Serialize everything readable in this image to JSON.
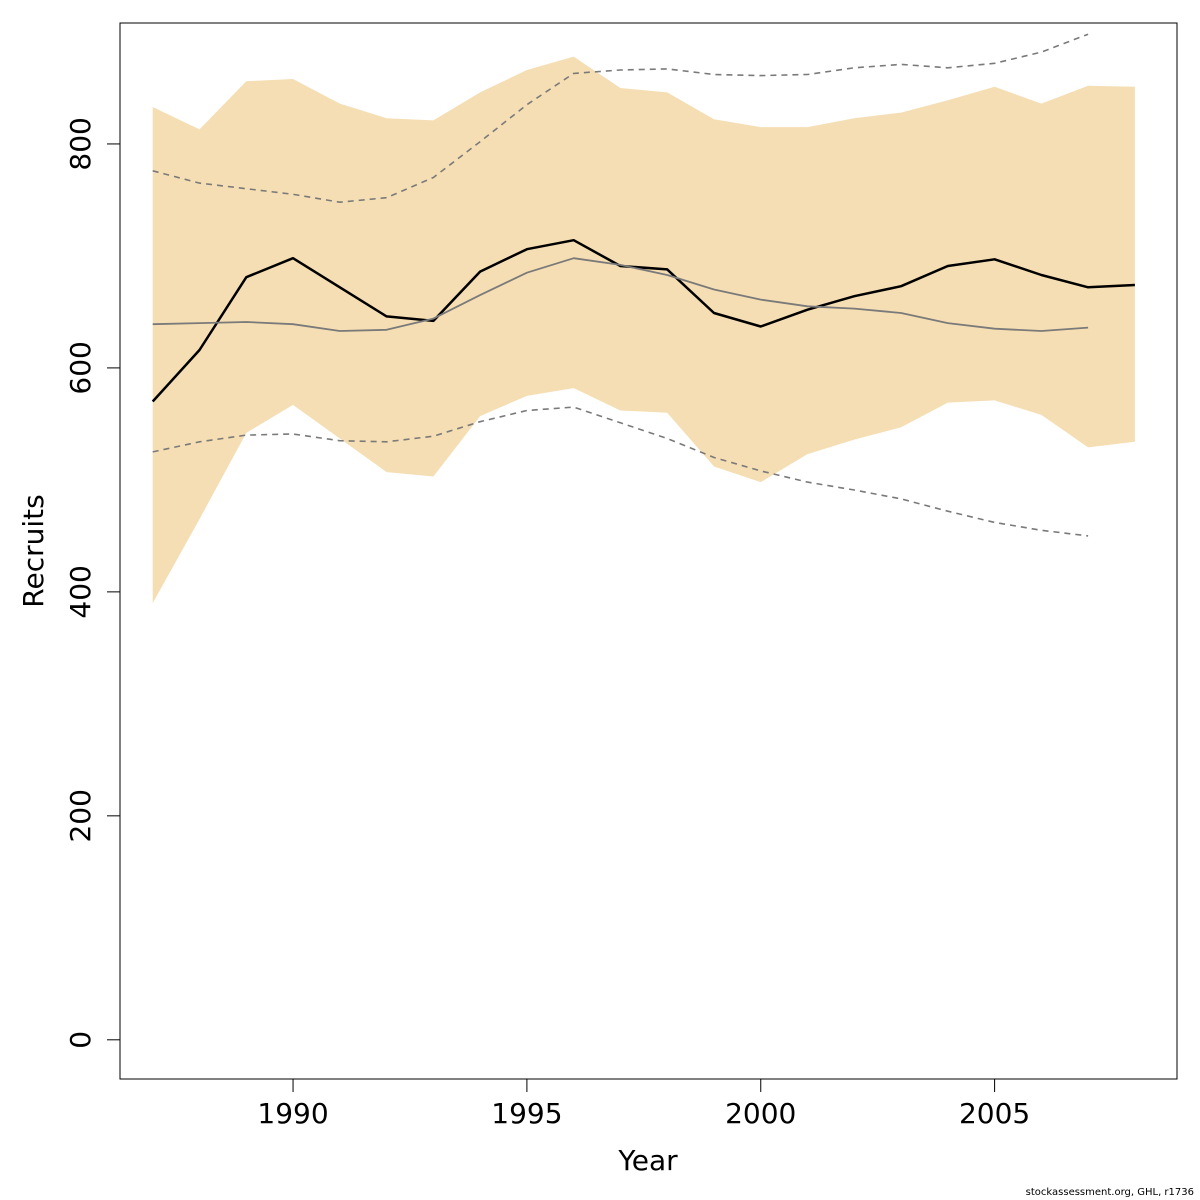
{
  "chart_data": {
    "type": "line",
    "title": "",
    "xlabel": "Year",
    "ylabel": "Recruits",
    "xlim": [
      1986.3,
      2008.9
    ],
    "ylim": [
      -35,
      908
    ],
    "x_ticks": [
      1990,
      1995,
      2000,
      2005
    ],
    "y_ticks": [
      0,
      200,
      400,
      600,
      800
    ],
    "grid": false,
    "legend": "none",
    "colors": {
      "band": "#f5deb3",
      "estimate": "#000000",
      "reference": "#7a7a7a",
      "reference_bounds": "#7a7a7a",
      "axis": "#000000"
    },
    "band": {
      "x": [
        1987,
        1988,
        1989,
        1990,
        1991,
        1992,
        1993,
        1994,
        1995,
        1996,
        1997,
        1998,
        1999,
        2000,
        2001,
        2002,
        2003,
        2004,
        2005,
        2006,
        2007,
        2008
      ],
      "lower": [
        390,
        465,
        542,
        567,
        537,
        507,
        503,
        557,
        575,
        582,
        562,
        560,
        512,
        498,
        523,
        536,
        547,
        569,
        571,
        558,
        529,
        534
      ],
      "upper": [
        833,
        813,
        856,
        858,
        836,
        823,
        821,
        846,
        866,
        878,
        850,
        846,
        822,
        815,
        815,
        823,
        828,
        839,
        851,
        836,
        852,
        851
      ]
    },
    "series": [
      {
        "style": "solid-bold",
        "x": [
          1987,
          1988,
          1989,
          1990,
          1991,
          1992,
          1993,
          1994,
          1995,
          1996,
          1997,
          1998,
          1999,
          2000,
          2001,
          2002,
          2003,
          2004,
          2005,
          2006,
          2007,
          2008
        ],
        "values": [
          570,
          616,
          681,
          698,
          672,
          646,
          642,
          686,
          706,
          714,
          691,
          688,
          649,
          637,
          652,
          664,
          673,
          691,
          697,
          683,
          672,
          674
        ]
      },
      {
        "style": "solid-thin",
        "x": [
          1987,
          1988,
          1989,
          1990,
          1991,
          1992,
          1993,
          1994,
          1995,
          1996,
          1997,
          1998,
          1999,
          2000,
          2001,
          2002,
          2003,
          2004,
          2005,
          2006,
          2007
        ],
        "values": [
          639,
          640,
          641,
          639,
          633,
          634,
          644,
          665,
          685,
          698,
          692,
          683,
          670,
          661,
          655,
          653,
          649,
          640,
          635,
          633,
          636
        ]
      },
      {
        "style": "dashed",
        "x": [
          1987,
          1988,
          1989,
          1990,
          1991,
          1992,
          1993,
          1994,
          1995,
          1996,
          1997,
          1998,
          1999,
          2000,
          2001,
          2002,
          2003,
          2004,
          2005,
          2006,
          2007
        ],
        "values": [
          776,
          765,
          760,
          755,
          748,
          752,
          770,
          802,
          835,
          863,
          866,
          867,
          862,
          861,
          862,
          868,
          871,
          868,
          872,
          882,
          898
        ]
      },
      {
        "style": "dashed",
        "x": [
          1987,
          1988,
          1989,
          1990,
          1991,
          1992,
          1993,
          1994,
          1995,
          1996,
          1997,
          1998,
          1999,
          2000,
          2001,
          2002,
          2003,
          2004,
          2005,
          2006,
          2007
        ],
        "values": [
          525,
          534,
          540,
          541,
          535,
          534,
          539,
          552,
          562,
          565,
          551,
          537,
          520,
          508,
          498,
          491,
          483,
          472,
          462,
          455,
          450
        ]
      }
    ]
  },
  "footer": {
    "credit": "stockassessment.org, GHL, r1736"
  }
}
